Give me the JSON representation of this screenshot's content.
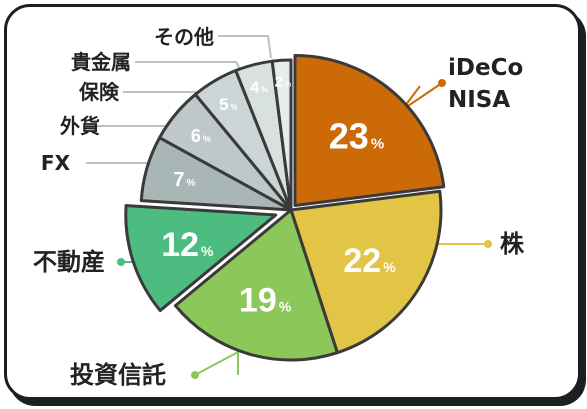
{
  "chart_data": {
    "type": "pie",
    "unit": "%",
    "slices": [
      {
        "label": "iDeCo\nNISA",
        "value": 23,
        "color": "#cc6a08"
      },
      {
        "label": "株",
        "value": 22,
        "color": "#e2c545"
      },
      {
        "label": "投資信託",
        "value": 19,
        "color": "#8cc759"
      },
      {
        "label": "不動産",
        "value": 12,
        "color": "#4cbc80"
      },
      {
        "label": "FX",
        "value": 7,
        "color": "#a9b6b6"
      },
      {
        "label": "外貨",
        "value": 6,
        "color": "#bec8c8"
      },
      {
        "label": "保険",
        "value": 5,
        "color": "#ccd5d5"
      },
      {
        "label": "貴金属",
        "value": 4,
        "color": "#d9e0e0"
      },
      {
        "label": "その他",
        "value": 2,
        "color": "#e6ebeb"
      }
    ]
  },
  "colors": {
    "outline": "#3a3a3a",
    "card_border": "#1e1e1e",
    "gray_leader": "#b8c2c2",
    "gray_value_text": "#ffffff"
  }
}
